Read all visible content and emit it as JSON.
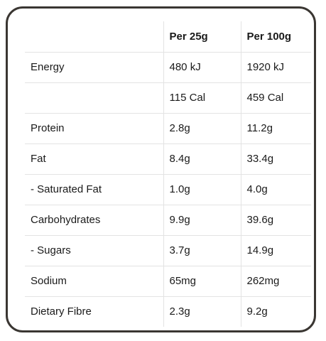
{
  "header": {
    "blank": "",
    "col_25g": "Per 25g",
    "col_100g": "Per 100g"
  },
  "rows": [
    {
      "label": "Energy",
      "per25": "480 kJ",
      "per100": "1920 kJ"
    },
    {
      "label": "",
      "per25": "115 Cal",
      "per100": "459 Cal"
    },
    {
      "label": "Protein",
      "per25": "2.8g",
      "per100": "11.2g"
    },
    {
      "label": "Fat",
      "per25": "8.4g",
      "per100": "33.4g"
    },
    {
      "label": "- Saturated Fat",
      "per25": "1.0g",
      "per100": "4.0g"
    },
    {
      "label": "Carbohydrates",
      "per25": "9.9g",
      "per100": "39.6g"
    },
    {
      "label": "- Sugars",
      "per25": "3.7g",
      "per100": "14.9g"
    },
    {
      "label": "Sodium",
      "per25": "65mg",
      "per100": "262mg"
    },
    {
      "label": "Dietary Fibre",
      "per25": "2.3g",
      "per100": "9.2g"
    }
  ]
}
